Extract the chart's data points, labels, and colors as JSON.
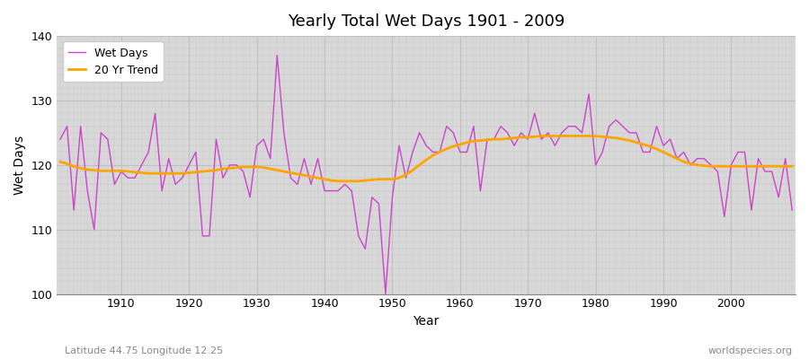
{
  "title": "Yearly Total Wet Days 1901 - 2009",
  "xlabel": "Year",
  "ylabel": "Wet Days",
  "subtitle": "Latitude 44.75 Longitude 12.25",
  "watermark": "worldspecies.org",
  "wet_days_color": "#CC44CC",
  "trend_color": "#FFA500",
  "background_color": "#D8D8D8",
  "ylim": [
    100,
    140
  ],
  "xlim": [
    1901,
    2009
  ],
  "years": [
    1901,
    1902,
    1903,
    1904,
    1905,
    1906,
    1907,
    1908,
    1909,
    1910,
    1911,
    1912,
    1913,
    1914,
    1915,
    1916,
    1917,
    1918,
    1919,
    1920,
    1921,
    1922,
    1923,
    1924,
    1925,
    1926,
    1927,
    1928,
    1929,
    1930,
    1931,
    1932,
    1933,
    1934,
    1935,
    1936,
    1937,
    1938,
    1939,
    1940,
    1941,
    1942,
    1943,
    1944,
    1945,
    1946,
    1947,
    1948,
    1949,
    1950,
    1951,
    1952,
    1953,
    1954,
    1955,
    1956,
    1957,
    1958,
    1959,
    1960,
    1961,
    1962,
    1963,
    1964,
    1965,
    1966,
    1967,
    1968,
    1969,
    1970,
    1971,
    1972,
    1973,
    1974,
    1975,
    1976,
    1977,
    1978,
    1979,
    1980,
    1981,
    1982,
    1983,
    1984,
    1985,
    1986,
    1987,
    1988,
    1989,
    1990,
    1991,
    1992,
    1993,
    1994,
    1995,
    1996,
    1997,
    1998,
    1999,
    2000,
    2001,
    2002,
    2003,
    2004,
    2005,
    2006,
    2007,
    2008,
    2009
  ],
  "wet_days": [
    124,
    126,
    113,
    126,
    116,
    110,
    125,
    124,
    117,
    119,
    118,
    118,
    120,
    122,
    128,
    116,
    121,
    117,
    118,
    120,
    122,
    109,
    109,
    124,
    118,
    120,
    120,
    119,
    115,
    123,
    124,
    121,
    137,
    125,
    118,
    117,
    121,
    117,
    121,
    116,
    116,
    116,
    117,
    116,
    109,
    107,
    115,
    114,
    100,
    115,
    123,
    118,
    122,
    125,
    123,
    122,
    122,
    126,
    125,
    122,
    122,
    126,
    116,
    124,
    124,
    126,
    125,
    123,
    125,
    124,
    128,
    124,
    125,
    123,
    125,
    126,
    126,
    125,
    131,
    120,
    122,
    126,
    127,
    126,
    125,
    125,
    122,
    122,
    126,
    123,
    124,
    121,
    122,
    120,
    121,
    121,
    120,
    119,
    112,
    120,
    122,
    122,
    113,
    121,
    119,
    119,
    115,
    121,
    113
  ],
  "trend_years": [
    1901,
    1902,
    1903,
    1904,
    1905,
    1906,
    1907,
    1908,
    1909,
    1910,
    1911,
    1912,
    1913,
    1914,
    1915,
    1916,
    1917,
    1918,
    1919,
    1920,
    1921,
    1922,
    1923,
    1924,
    1925,
    1926,
    1927,
    1928,
    1929,
    1930,
    1931,
    1932,
    1933,
    1934,
    1935,
    1936,
    1937,
    1938,
    1939,
    1940,
    1941,
    1942,
    1943,
    1944,
    1945,
    1946,
    1947,
    1948,
    1949,
    1950,
    1951,
    1952,
    1953,
    1954,
    1955,
    1956,
    1957,
    1958,
    1959,
    1960,
    1961,
    1962,
    1963,
    1964,
    1965,
    1966,
    1967,
    1968,
    1969,
    1970,
    1971,
    1972,
    1973,
    1974,
    1975,
    1976,
    1977,
    1978,
    1979,
    1980,
    1981,
    1982,
    1983,
    1984,
    1985,
    1986,
    1987,
    1988,
    1989,
    1990,
    1991,
    1992,
    1993,
    1994,
    1995,
    1996,
    1997,
    1998,
    1999,
    2000,
    2001,
    2002,
    2003,
    2004,
    2005,
    2006,
    2007,
    2008,
    2009
  ],
  "trend_values": [
    120.5,
    120.2,
    119.8,
    119.5,
    119.3,
    119.2,
    119.1,
    119.1,
    119.1,
    119.1,
    119.0,
    118.9,
    118.8,
    118.7,
    118.7,
    118.7,
    118.7,
    118.7,
    118.7,
    118.8,
    118.9,
    119.0,
    119.1,
    119.2,
    119.4,
    119.5,
    119.6,
    119.7,
    119.7,
    119.7,
    119.6,
    119.4,
    119.2,
    119.0,
    118.8,
    118.6,
    118.4,
    118.2,
    118.0,
    117.8,
    117.6,
    117.5,
    117.5,
    117.5,
    117.5,
    117.6,
    117.7,
    117.8,
    117.8,
    117.8,
    118.0,
    118.5,
    119.2,
    120.0,
    120.8,
    121.5,
    122.0,
    122.5,
    122.9,
    123.2,
    123.5,
    123.7,
    123.8,
    123.9,
    124.0,
    124.0,
    124.1,
    124.2,
    124.3,
    124.3,
    124.4,
    124.5,
    124.5,
    124.5,
    124.5,
    124.5,
    124.5,
    124.5,
    124.5,
    124.5,
    124.4,
    124.3,
    124.2,
    124.0,
    123.8,
    123.5,
    123.2,
    122.9,
    122.5,
    122.0,
    121.5,
    121.0,
    120.5,
    120.2,
    120.0,
    119.9,
    119.8,
    119.8,
    119.8,
    119.8,
    119.8,
    119.8,
    119.8,
    119.8,
    119.8,
    119.8,
    119.8,
    119.8,
    119.8
  ]
}
